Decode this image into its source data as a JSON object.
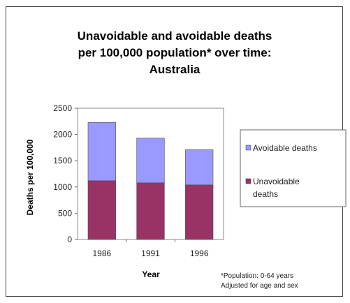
{
  "chart_data": {
    "type": "bar",
    "stacked": true,
    "title_lines": [
      "Unavoidable and avoidable deaths",
      "per 100,000 population* over time:",
      "Australia"
    ],
    "xlabel": "Year",
    "ylabel": "Deaths per 100,000",
    "categories": [
      "1986",
      "1991",
      "1996"
    ],
    "series": [
      {
        "name": "Unavoidable deaths",
        "values": [
          1120,
          1080,
          1040
        ],
        "color": "#993366"
      },
      {
        "name": "Avoidable deaths",
        "values": [
          1110,
          850,
          670
        ],
        "color": "#9999ff"
      }
    ],
    "ylim": [
      0,
      2500
    ],
    "yticks": [
      "0",
      "500",
      "1000",
      "1500",
      "2000",
      "2500"
    ],
    "ytick_values": [
      0,
      500,
      1000,
      1500,
      2000,
      2500
    ],
    "legend": {
      "position": "right",
      "entries": [
        {
          "label_lines": [
            "Avoidable deaths"
          ],
          "color": "#9999ff"
        },
        {
          "label_lines": [
            "Unavoidable",
            "deaths"
          ],
          "color": "#993366"
        }
      ]
    },
    "footnote_lines": [
      "*Population: 0-64 years",
      "Adjusted for age and sex"
    ],
    "grid": false
  }
}
